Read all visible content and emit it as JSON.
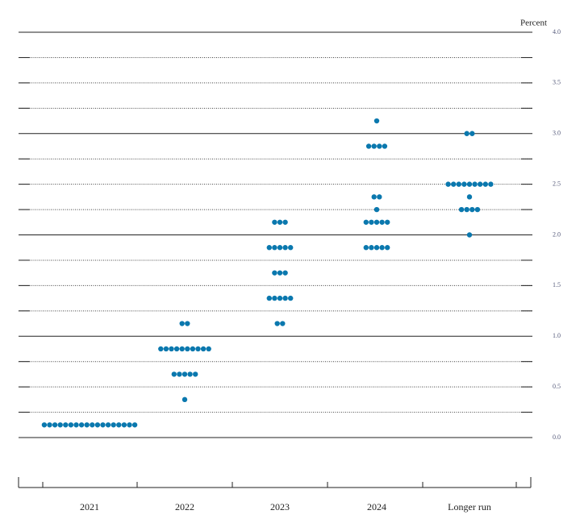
{
  "chart_data": {
    "type": "dot",
    "axis_label": "Percent",
    "color": "#0a78ae",
    "categories": [
      "2021",
      "2022",
      "2023",
      "2024",
      "Longer run"
    ],
    "dots": [
      [
        {
          "rate": 0.125,
          "count": 18
        }
      ],
      [
        {
          "rate": 1.125,
          "count": 2
        },
        {
          "rate": 0.875,
          "count": 10
        },
        {
          "rate": 0.625,
          "count": 5
        },
        {
          "rate": 0.375,
          "count": 1
        }
      ],
      [
        {
          "rate": 2.125,
          "count": 3
        },
        {
          "rate": 1.875,
          "count": 5
        },
        {
          "rate": 1.625,
          "count": 3
        },
        {
          "rate": 1.375,
          "count": 5
        },
        {
          "rate": 1.125,
          "count": 2
        }
      ],
      [
        {
          "rate": 3.125,
          "count": 1
        },
        {
          "rate": 2.875,
          "count": 4
        },
        {
          "rate": 2.375,
          "count": 2
        },
        {
          "rate": 2.25,
          "count": 1
        },
        {
          "rate": 2.125,
          "count": 5
        },
        {
          "rate": 1.875,
          "count": 5
        }
      ],
      [
        {
          "rate": 3.0,
          "count": 2
        },
        {
          "rate": 2.5,
          "count": 9
        },
        {
          "rate": 2.375,
          "count": 1
        },
        {
          "rate": 2.25,
          "count": 4
        },
        {
          "rate": 2.0,
          "count": 1
        }
      ]
    ],
    "ylim": [
      0,
      4
    ],
    "yticks": [
      {
        "value": 0,
        "label": "0.0"
      },
      {
        "value": 0.5,
        "label": "0.5"
      },
      {
        "value": 1,
        "label": "1.0"
      },
      {
        "value": 1.5,
        "label": "1.5"
      },
      {
        "value": 2,
        "label": "2.0"
      },
      {
        "value": 2.5,
        "label": "2.5"
      },
      {
        "value": 3,
        "label": "3.0"
      },
      {
        "value": 3.5,
        "label": "3.5"
      },
      {
        "value": 4,
        "label": "4.0"
      }
    ],
    "minor_yticks": [
      0.25,
      0.75,
      1.25,
      1.75,
      2.25,
      2.75,
      3.25,
      3.75
    ]
  }
}
